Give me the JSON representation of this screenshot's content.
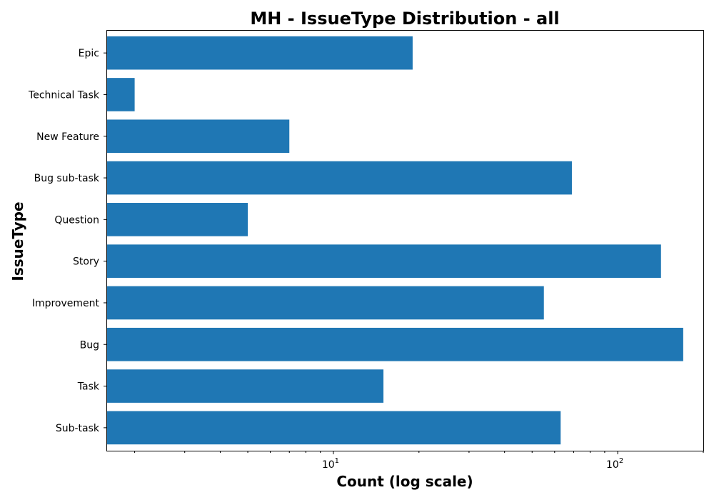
{
  "chart_data": {
    "type": "bar",
    "orientation": "horizontal",
    "title": "MH - IssueType Distribution - all",
    "xlabel": "Count (log scale)",
    "ylabel": "IssueType",
    "xscale": "log",
    "xlim": [
      1.6,
      200
    ],
    "categories": [
      "Sub-task",
      "Task",
      "Bug",
      "Improvement",
      "Story",
      "Question",
      "Bug sub-task",
      "New Feature",
      "Technical Task",
      "Epic"
    ],
    "values": [
      63,
      15,
      170,
      55,
      142,
      5,
      69,
      7,
      2,
      19
    ],
    "x_major_ticks": [
      10,
      100
    ],
    "x_major_tick_labels": [
      "10",
      "10"
    ],
    "x_major_tick_exponents": [
      "1",
      "2"
    ],
    "grid": false,
    "color": "#1f77b4"
  }
}
